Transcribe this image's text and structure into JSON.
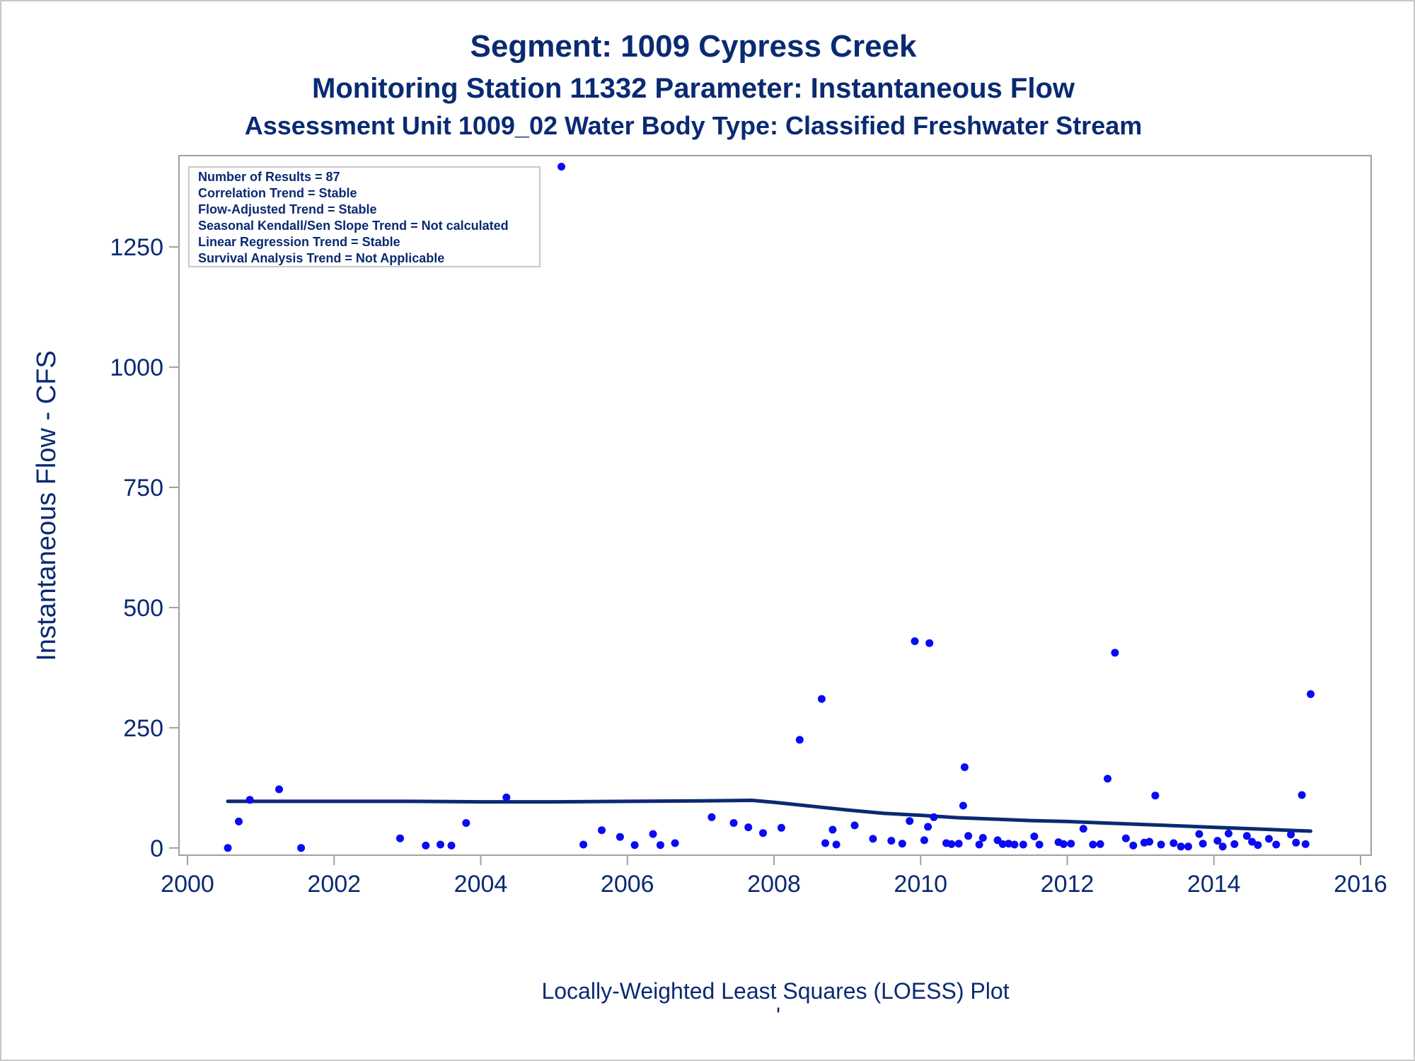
{
  "titles": {
    "main": "Segment: 1009  Cypress Creek",
    "line2": "Monitoring Station 11332 Parameter: Instantaneous Flow",
    "line3": "Assessment Unit 1009_02   Water Body Type: Classified Freshwater Stream"
  },
  "stats_box": [
    "Number of Results = 87",
    "Correlation Trend = Stable",
    "Flow-Adjusted Trend = Stable",
    "Seasonal Kendall/Sen Slope Trend = Not calculated",
    "Linear Regression Trend = Stable",
    "Survival Analysis Trend = Not Applicable"
  ],
  "footer": {
    "text": "Locally-Weighted Least Squares (LOESS) Plot",
    "mark": "'"
  },
  "colors": {
    "text": "#0a2a72",
    "points": "#0a0af5",
    "loess_line": "#0a2a72",
    "frame": "#a0a0a0"
  },
  "chart_data": {
    "type": "scatter",
    "title": "Segment: 1009  Cypress Creek",
    "xlabel": "",
    "ylabel": "Instantaneous Flow - CFS",
    "xlim": [
      2000,
      2016
    ],
    "ylim": [
      -15,
      1440
    ],
    "x_ticks": [
      2000,
      2002,
      2004,
      2006,
      2008,
      2010,
      2012,
      2014,
      2016
    ],
    "y_ticks": [
      0,
      250,
      500,
      750,
      1000,
      1250
    ],
    "grid": false,
    "series": [
      {
        "kind": "points",
        "x": [
          2000.55,
          2000.7,
          2000.85,
          2001.25,
          2001.55,
          2002.9,
          2003.25,
          2003.45,
          2003.6,
          2003.8,
          2004.35,
          2005.1,
          2005.4,
          2005.65,
          2005.9,
          2006.1,
          2006.35,
          2006.45,
          2006.65,
          2007.15,
          2007.45,
          2007.65,
          2007.85,
          2008.1,
          2008.35,
          2008.65,
          2008.7,
          2008.8,
          2008.85,
          2009.1,
          2009.35,
          2009.6,
          2009.75,
          2009.85,
          2009.92,
          2010.05,
          2010.1,
          2010.12,
          2010.18,
          2010.35,
          2010.42,
          2010.52,
          2010.58,
          2010.6,
          2010.65,
          2010.8,
          2010.85,
          2011.05,
          2011.12,
          2011.2,
          2011.28,
          2011.4,
          2011.55,
          2011.62,
          2011.88,
          2011.95,
          2012.05,
          2012.22,
          2012.35,
          2012.45,
          2012.55,
          2012.65,
          2012.8,
          2012.9,
          2013.05,
          2013.12,
          2013.2,
          2013.28,
          2013.45,
          2013.55,
          2013.65,
          2013.8,
          2013.85,
          2014.05,
          2014.12,
          2014.2,
          2014.28,
          2014.45,
          2014.52,
          2014.6,
          2014.75,
          2014.85,
          2015.05,
          2015.12,
          2015.2,
          2015.25,
          2015.32
        ],
        "y": [
          0,
          55,
          100,
          122,
          0,
          20,
          5,
          7,
          5,
          52,
          105,
          1417,
          7,
          37,
          23,
          6,
          29,
          6,
          10,
          64,
          52,
          43,
          31,
          42,
          225,
          310,
          10,
          38,
          7,
          47,
          19,
          15,
          9,
          56,
          430,
          16,
          44,
          426,
          64,
          10,
          8,
          9,
          88,
          168,
          25,
          7,
          21,
          16,
          8,
          9,
          7,
          7,
          24,
          7,
          12,
          8,
          9,
          40,
          7,
          8,
          144,
          406,
          20,
          5,
          11,
          13,
          109,
          7,
          10,
          3,
          3,
          29,
          9,
          15,
          3,
          30,
          8,
          25,
          13,
          6,
          19,
          7,
          28,
          11,
          110,
          8,
          320
        ]
      },
      {
        "kind": "loess",
        "x": [
          2000.55,
          2001,
          2002,
          2003,
          2004,
          2005,
          2006,
          2007,
          2007.7,
          2008,
          2008.5,
          2009,
          2009.5,
          2010,
          2010.5,
          2011,
          2011.5,
          2012,
          2012.5,
          2013,
          2013.5,
          2014,
          2014.5,
          2015,
          2015.32
        ],
        "y": [
          97,
          97,
          97,
          97,
          96,
          96,
          97,
          98,
          99,
          95,
          87,
          79,
          72,
          68,
          63,
          60,
          57,
          55,
          52,
          49,
          46,
          43,
          40,
          37,
          35
        ]
      }
    ]
  }
}
